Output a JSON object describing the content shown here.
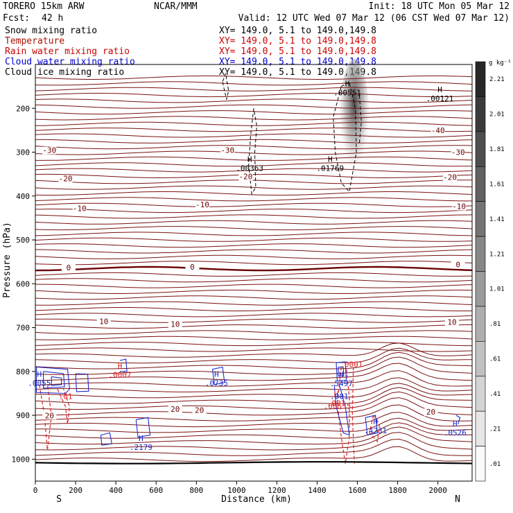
{
  "header": {
    "model": "TORERO   15km ARW",
    "org": "NCAR/MMM",
    "init": "Init: 18 UTC Mon 05 Mar 12",
    "fcst_label": "Fcst:",
    "fcst_value": "42 h",
    "valid": "Valid: 12 UTC Wed 07 Mar 12 (06 CST Wed 07 Mar 12)"
  },
  "legend": [
    {
      "label": "Snow mixing ratio",
      "xy": "XY= 149.0,  5.1 to 149.0,149.8",
      "label_color": "#000000",
      "xy_color": "#000000"
    },
    {
      "label": "Temperature",
      "xy": "XY= 149.0,  5.1 to 149.0,149.8",
      "label_color": "#aa1100",
      "xy_color": "#cc0000"
    },
    {
      "label": "Rain water mixing ratio",
      "xy": "XY= 149.0,  5.1 to 149.0,149.8",
      "label_color": "#cc0000",
      "xy_color": "#cc0000"
    },
    {
      "label": "Cloud water mixing ratio",
      "xy": "XY= 149.0,  5.1 to 149.0,149.8",
      "label_color": "#0000cc",
      "xy_color": "#0000cc"
    },
    {
      "label": "Cloud ice mixing ratio",
      "xy": "XY= 149.0,  5.1 to 149.0,149.8",
      "label_color": "#000000",
      "xy_color": "#000000"
    }
  ],
  "colors": {
    "temperature": "#7a1010",
    "zero_isotherm": "#6a0000",
    "rain": "#dd2222",
    "cloud_water": "#1a2bd0",
    "cloud_ice": "#000000",
    "terrain": "#000000"
  },
  "chart_data": {
    "type": "contour",
    "xlabel": "Distance (km)",
    "ylabel": "Pressure (hPa)",
    "xlim": [
      0,
      2170
    ],
    "ylim": [
      1050,
      100
    ],
    "x_ticks": [
      "0",
      "200",
      "400",
      "600",
      "800",
      "1000",
      "1200",
      "1400",
      "1600",
      "1800",
      "2000"
    ],
    "y_ticks": [
      "200",
      "300",
      "400",
      "500",
      "600",
      "700",
      "800",
      "900",
      "1000"
    ],
    "x_end_labels": {
      "left": "S",
      "right": "N"
    },
    "colorbar": {
      "unit": "g kg⁻¹",
      "ticks": [
        "2.21",
        "2.01",
        "1.81",
        "1.61",
        "1.41",
        "1.21",
        "1.01",
        ".81",
        ".61",
        ".41",
        ".21",
        ".01"
      ]
    },
    "temperature_labels": [
      {
        "text": "-40",
        "x": 2000,
        "p": 255
      },
      {
        "text": "-30",
        "x": 70,
        "p": 300
      },
      {
        "text": "-30",
        "x": 955,
        "p": 300
      },
      {
        "text": "-30",
        "x": 2100,
        "p": 305
      },
      {
        "text": "-20",
        "x": 150,
        "p": 365
      },
      {
        "text": "-20",
        "x": 1045,
        "p": 360
      },
      {
        "text": "-20",
        "x": 2060,
        "p": 362
      },
      {
        "text": "-10",
        "x": 220,
        "p": 433
      },
      {
        "text": "-10",
        "x": 830,
        "p": 424
      },
      {
        "text": "-10",
        "x": 2105,
        "p": 428
      },
      {
        "text": "0",
        "x": 165,
        "p": 568
      },
      {
        "text": "0",
        "x": 780,
        "p": 566
      },
      {
        "text": "0",
        "x": 2100,
        "p": 561
      },
      {
        "text": "10",
        "x": 340,
        "p": 690
      },
      {
        "text": "10",
        "x": 695,
        "p": 697
      },
      {
        "text": "10",
        "x": 2070,
        "p": 692
      },
      {
        "text": "20",
        "x": 70,
        "p": 905
      },
      {
        "text": "20",
        "x": 695,
        "p": 890
      },
      {
        "text": "20",
        "x": 815,
        "p": 893
      },
      {
        "text": "20",
        "x": 1965,
        "p": 897
      }
    ],
    "maxima": [
      {
        "marker": "H",
        "value": ".00551",
        "x": 1550,
        "p": 150,
        "color": "#000000"
      },
      {
        "marker": "H",
        "value": ".00121",
        "x": 2010,
        "p": 163,
        "color": "#000000"
      },
      {
        "marker": "H",
        "value": ".00363",
        "x": 1065,
        "p": 322,
        "color": "#000000"
      },
      {
        "marker": "H",
        "value": ".01769",
        "x": 1465,
        "p": 322,
        "color": "#000000"
      },
      {
        "marker": "H",
        "value": ".0055",
        "x": 20,
        "p": 812,
        "color": "#1a2bd0"
      },
      {
        "marker": "H",
        "value": ".0007",
        "x": 420,
        "p": 793,
        "color": "#dd2222"
      },
      {
        "marker": "H",
        "value": ".0735",
        "x": 900,
        "p": 812,
        "color": "#1a2bd0"
      },
      {
        "marker": "H",
        "value": ".5497",
        "x": 1520,
        "p": 813,
        "color": "#1a2bd0"
      },
      {
        "marker": "H",
        "value": ".001",
        "x": 1495,
        "p": 858,
        "color": "#dd2222"
      },
      {
        "marker": "H",
        "value": ".2179",
        "x": 525,
        "p": 958,
        "color": "#1a2bd0"
      },
      {
        "marker": "H",
        "value": ".4231",
        "x": 1690,
        "p": 920,
        "color": "#1a2bd0"
      },
      {
        "marker": "H",
        "value": ".0526",
        "x": 2085,
        "p": 925,
        "color": "#1a2bd0"
      }
    ],
    "extra_labels": [
      {
        "text": ".0001",
        "x": 1570,
        "p": 790,
        "color": "#dd2222"
      },
      {
        "text": ".01",
        "x": 150,
        "p": 863,
        "color": "#dd2222"
      },
      {
        "text": ".001",
        "x": 1510,
        "p": 863,
        "color": "#1a2bd0"
      },
      {
        "text": ".00535",
        "x": 1500,
        "p": 885,
        "color": "#dd2222"
      }
    ]
  }
}
